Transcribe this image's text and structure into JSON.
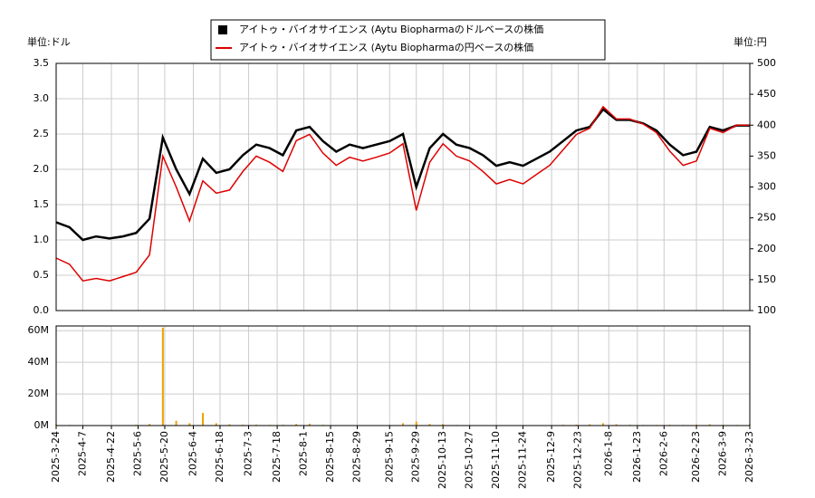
{
  "chart_data": [
    {
      "type": "line",
      "y_unit_label": "単位:ドル",
      "y2_unit_label": "単位:円",
      "x": [
        "2025-03-24",
        "2025-03-31",
        "2025-04-07",
        "2025-04-14",
        "2025-04-21",
        "2025-04-28",
        "2025-05-05",
        "2025-05-12",
        "2025-05-19",
        "2025-05-26",
        "2025-06-02",
        "2025-06-09",
        "2025-06-16",
        "2025-06-23",
        "2025-06-30",
        "2025-07-07",
        "2025-07-14",
        "2025-07-21",
        "2025-07-28",
        "2025-08-04",
        "2025-08-11",
        "2025-08-18",
        "2025-08-25",
        "2025-09-01",
        "2025-09-08",
        "2025-09-15",
        "2025-09-22",
        "2025-09-29",
        "2025-10-06",
        "2025-10-13",
        "2025-10-20",
        "2025-10-27",
        "2025-11-03",
        "2025-11-10",
        "2025-11-17",
        "2025-11-24",
        "2025-12-01",
        "2025-12-08",
        "2025-12-15",
        "2025-12-22",
        "2025-12-29",
        "2026-01-05",
        "2026-01-12",
        "2026-01-19",
        "2026-01-26",
        "2026-02-02",
        "2026-02-09",
        "2026-02-16",
        "2026-02-23",
        "2026-03-02",
        "2026-03-09",
        "2026-03-16",
        "2026-03-23"
      ],
      "series": [
        {
          "name": "アイトゥ・バイオサイエンス (Aytu Biopharmaのドルベースの株価",
          "color": "#000000",
          "values": [
            1.25,
            1.18,
            1.0,
            1.05,
            1.02,
            1.05,
            1.1,
            1.3,
            2.45,
            2.0,
            1.65,
            2.15,
            1.95,
            2.0,
            2.2,
            2.35,
            2.3,
            2.2,
            2.55,
            2.6,
            2.4,
            2.25,
            2.35,
            2.3,
            2.35,
            2.4,
            2.5,
            1.75,
            2.3,
            2.5,
            2.35,
            2.3,
            2.2,
            2.05,
            2.1,
            2.05,
            2.15,
            2.25,
            2.4,
            2.55,
            2.6,
            2.85,
            2.7,
            2.7,
            2.65,
            2.55,
            2.35,
            2.2,
            2.25,
            2.6,
            2.55,
            2.62,
            2.62
          ]
        },
        {
          "name": "アイトゥ・バイオサイエンス (Aytu Biopharmaの円ベースの株価",
          "color": "#dd0000",
          "axis": "y2",
          "values": [
            185,
            175,
            148,
            152,
            148,
            155,
            162,
            190,
            350,
            300,
            245,
            310,
            290,
            295,
            325,
            350,
            340,
            325,
            375,
            385,
            355,
            335,
            348,
            342,
            348,
            355,
            370,
            262,
            340,
            370,
            350,
            342,
            325,
            305,
            312,
            305,
            320,
            335,
            360,
            385,
            395,
            430,
            410,
            410,
            402,
            388,
            358,
            335,
            342,
            395,
            388,
            400,
            400
          ]
        }
      ],
      "xlim": [
        "2025-03-24",
        "2026-03-23"
      ],
      "ylim": [
        0,
        3.5
      ],
      "yticks": [
        {
          "value": 0,
          "label": "0.0"
        },
        {
          "value": 0.5,
          "label": "0.5"
        },
        {
          "value": 1,
          "label": "1.0"
        },
        {
          "value": 1.5,
          "label": "1.5"
        },
        {
          "value": 2,
          "label": "2.0"
        },
        {
          "value": 2.5,
          "label": "2.5"
        },
        {
          "value": 3,
          "label": "3.0"
        },
        {
          "value": 3.5,
          "label": "3.5"
        }
      ],
      "y2lim": [
        100,
        500
      ],
      "y2ticks": [
        100,
        150,
        200,
        250,
        300,
        350,
        400,
        450,
        500
      ],
      "grid": true
    },
    {
      "type": "bar",
      "color": "#f0a000",
      "ylim": [
        0,
        63
      ],
      "yticks": [
        {
          "value": 0,
          "label": "0M"
        },
        {
          "value": 20,
          "label": "20M"
        },
        {
          "value": 40,
          "label": "40M"
        },
        {
          "value": 60,
          "label": "60M"
        }
      ],
      "values": [
        0.5,
        0.4,
        0.3,
        0.3,
        0.2,
        0.3,
        0.5,
        1,
        62,
        3,
        1.5,
        8,
        1.5,
        0.8,
        0.5,
        0.6,
        0.4,
        0.5,
        1,
        1.2,
        0.5,
        0.3,
        0.3,
        0.3,
        0.3,
        0.4,
        1.5,
        2.5,
        1,
        1,
        0.4,
        0.3,
        0.3,
        0.3,
        0.2,
        0.2,
        0.3,
        0.3,
        0.5,
        0.6,
        0.8,
        1.5,
        0.8,
        0.5,
        0.4,
        0.4,
        0.5,
        0.4,
        0.6,
        0.8,
        0.5,
        0.4,
        0.4
      ],
      "xticks": [
        {
          "value": "2025-03-24",
          "label": "2025-3-24"
        },
        {
          "value": "2025-04-07",
          "label": "2025-4-7"
        },
        {
          "value": "2025-04-22",
          "label": "2025-4-22"
        },
        {
          "value": "2025-05-06",
          "label": "2025-5-6"
        },
        {
          "value": "2025-05-20",
          "label": "2025-5-20"
        },
        {
          "value": "2025-06-04",
          "label": "2025-6-4"
        },
        {
          "value": "2025-06-18",
          "label": "2025-6-18"
        },
        {
          "value": "2025-07-03",
          "label": "2025-7-3"
        },
        {
          "value": "2025-07-18",
          "label": "2025-7-18"
        },
        {
          "value": "2025-08-01",
          "label": "2025-8-1"
        },
        {
          "value": "2025-08-15",
          "label": "2025-8-15"
        },
        {
          "value": "2025-08-29",
          "label": "2025-8-29"
        },
        {
          "value": "2025-09-15",
          "label": "2025-9-15"
        },
        {
          "value": "2025-09-29",
          "label": "2025-9-29"
        },
        {
          "value": "2025-10-13",
          "label": "2025-10-13"
        },
        {
          "value": "2025-10-27",
          "label": "2025-10-27"
        },
        {
          "value": "2025-11-10",
          "label": "2025-11-10"
        },
        {
          "value": "2025-11-24",
          "label": "2025-11-24"
        },
        {
          "value": "2025-12-09",
          "label": "2025-12-9"
        },
        {
          "value": "2025-12-23",
          "label": "2025-12-23"
        },
        {
          "value": "2026-01-08",
          "label": "2026-1-8"
        },
        {
          "value": "2026-01-23",
          "label": "2026-1-23"
        },
        {
          "value": "2026-02-06",
          "label": "2026-2-6"
        },
        {
          "value": "2026-02-23",
          "label": "2026-2-23"
        },
        {
          "value": "2026-03-09",
          "label": "2026-3-9"
        },
        {
          "value": "2026-03-23",
          "label": "2026-3-23"
        }
      ],
      "grid": true
    }
  ]
}
